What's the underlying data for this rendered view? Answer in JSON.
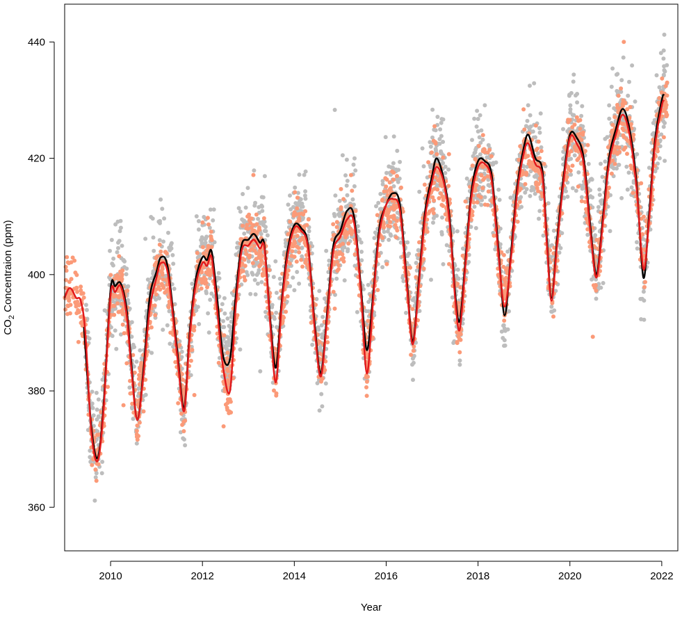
{
  "chart_data": {
    "type": "scatter",
    "title": "",
    "xlabel": "Year",
    "ylabel": {
      "prefix": "CO",
      "subscript": "2",
      "suffix": " Concentraion (ppm)"
    },
    "xlim": [
      2009.0,
      2022.35
    ],
    "ylim": [
      352.5,
      446.5
    ],
    "x_ticks": [
      2010,
      2012,
      2014,
      2016,
      2018,
      2020,
      2022
    ],
    "x_tick_labels": [
      "2010",
      "2012",
      "2014",
      "2016",
      "2018",
      "2020",
      "2022"
    ],
    "y_ticks": [
      360,
      380,
      400,
      420,
      440
    ],
    "y_tick_labels": [
      "360",
      "380",
      "400",
      "420",
      "440"
    ],
    "grid": false,
    "legend": "none",
    "colors": {
      "points_gray": "#bdbdbd",
      "points_orange": "#fb9a78",
      "line_black": "#000000",
      "line_red": "#e31a1c"
    },
    "series": [
      {
        "kind": "line",
        "color": "#000000",
        "x": [
          2009.42,
          2009.58,
          2009.72,
          2009.85,
          2010.0,
          2010.1,
          2010.22,
          2010.35,
          2010.45,
          2010.58,
          2010.72,
          2010.85,
          2011.0,
          2011.1,
          2011.25,
          2011.45,
          2011.6,
          2011.72,
          2011.85,
          2012.0,
          2012.1,
          2012.2,
          2012.32,
          2012.45,
          2012.6,
          2012.72,
          2012.85,
          2013.0,
          2013.12,
          2013.25,
          2013.35,
          2013.48,
          2013.6,
          2013.72,
          2013.85,
          2014.0,
          2014.15,
          2014.3,
          2014.45,
          2014.58,
          2014.72,
          2014.85,
          2015.0,
          2015.15,
          2015.3,
          2015.45,
          2015.58,
          2015.72,
          2015.85,
          2016.0,
          2016.15,
          2016.3,
          2016.45,
          2016.58,
          2016.72,
          2016.85,
          2017.0,
          2017.1,
          2017.25,
          2017.38,
          2017.5,
          2017.6,
          2017.72,
          2017.85,
          2018.0,
          2018.15,
          2018.3,
          2018.45,
          2018.58,
          2018.72,
          2018.85,
          2019.0,
          2019.1,
          2019.25,
          2019.4,
          2019.5,
          2019.6,
          2019.72,
          2019.85,
          2020.0,
          2020.15,
          2020.3,
          2020.45,
          2020.58,
          2020.72,
          2020.85,
          2021.0,
          2021.15,
          2021.3,
          2021.45,
          2021.6,
          2021.72,
          2021.85,
          2022.0,
          2022.05
        ],
        "y": [
          391,
          374,
          368.5,
          378,
          397.5,
          398,
          398.5,
          394,
          385,
          375,
          384,
          396,
          400.5,
          403,
          401,
          387,
          377,
          390,
          399,
          403,
          402.5,
          404,
          396,
          386,
          385.5,
          396,
          405,
          406,
          407,
          405.5,
          405,
          392,
          384,
          395,
          404,
          408.5,
          408,
          405,
          391,
          383,
          394,
          405,
          407.5,
          411,
          410,
          398,
          387,
          397,
          408,
          412,
          414,
          412,
          399,
          388.5,
          400,
          411,
          417,
          420,
          416.5,
          410,
          397,
          392,
          402,
          414,
          419.5,
          419.5,
          417,
          404,
          393,
          404,
          415,
          422,
          424,
          420,
          418,
          406,
          396,
          406,
          416,
          424,
          423.5,
          420,
          408,
          400,
          410,
          420,
          425,
          428.5,
          425,
          416,
          399.5,
          410,
          423,
          430,
          431
        ]
      },
      {
        "kind": "line",
        "color": "#e31a1c",
        "x": [
          2009.0,
          2009.08,
          2009.15,
          2009.25,
          2009.35,
          2009.45,
          2009.58,
          2009.72,
          2009.85,
          2010.0,
          2010.1,
          2010.22,
          2010.35,
          2010.45,
          2010.58,
          2010.72,
          2010.85,
          2011.0,
          2011.1,
          2011.25,
          2011.45,
          2011.6,
          2011.72,
          2011.85,
          2012.0,
          2012.1,
          2012.2,
          2012.32,
          2012.45,
          2012.6,
          2012.72,
          2012.85,
          2013.0,
          2013.12,
          2013.25,
          2013.35,
          2013.48,
          2013.6,
          2013.72,
          2013.85,
          2014.0,
          2014.15,
          2014.3,
          2014.45,
          2014.58,
          2014.72,
          2014.85,
          2015.0,
          2015.15,
          2015.3,
          2015.45,
          2015.58,
          2015.72,
          2015.85,
          2016.0,
          2016.15,
          2016.3,
          2016.45,
          2016.58,
          2016.72,
          2016.85,
          2017.0,
          2017.1,
          2017.25,
          2017.38,
          2017.5,
          2017.6,
          2017.72,
          2017.85,
          2018.0,
          2018.15,
          2018.3,
          2018.45,
          2018.58,
          2018.72,
          2018.85,
          2019.0,
          2019.1,
          2019.25,
          2019.4,
          2019.5,
          2019.6,
          2019.72,
          2019.85,
          2020.0,
          2020.15,
          2020.3,
          2020.45,
          2020.58,
          2020.72,
          2020.85,
          2021.0,
          2021.15,
          2021.3,
          2021.45,
          2021.6,
          2021.72,
          2021.85,
          2022.0,
          2022.05
        ],
        "y": [
          396,
          397.5,
          397.5,
          396,
          395.5,
          390,
          373,
          368,
          377,
          396.5,
          397,
          398,
          393,
          384,
          375,
          383,
          394,
          399.5,
          402,
          400,
          386,
          376.5,
          389,
          398,
          402,
          401.5,
          403,
          394,
          384,
          380,
          394,
          404,
          405,
          406,
          404.5,
          404.5,
          391,
          381.5,
          394,
          403,
          408,
          407.5,
          404.5,
          390,
          382.5,
          393,
          404,
          406.5,
          409.5,
          409,
          397,
          383,
          396,
          407,
          412,
          413,
          411,
          398,
          388,
          399,
          410,
          416,
          418.5,
          416,
          409,
          396,
          390.5,
          401,
          413,
          418.5,
          419,
          416,
          403,
          394.5,
          403,
          414,
          421,
          422.5,
          419,
          417,
          405,
          395.5,
          405,
          415,
          423.5,
          422.5,
          419,
          407,
          399.5,
          409,
          419,
          424,
          427.5,
          424,
          415,
          401,
          409,
          422,
          429,
          430
        ]
      },
      {
        "kind": "points",
        "color": "#bdbdbd",
        "description_visible": "dense scatter of daily observations around the curves"
      },
      {
        "kind": "points",
        "color": "#fb9a78",
        "description_visible": "dense scatter of daily observations around the curves"
      }
    ]
  }
}
